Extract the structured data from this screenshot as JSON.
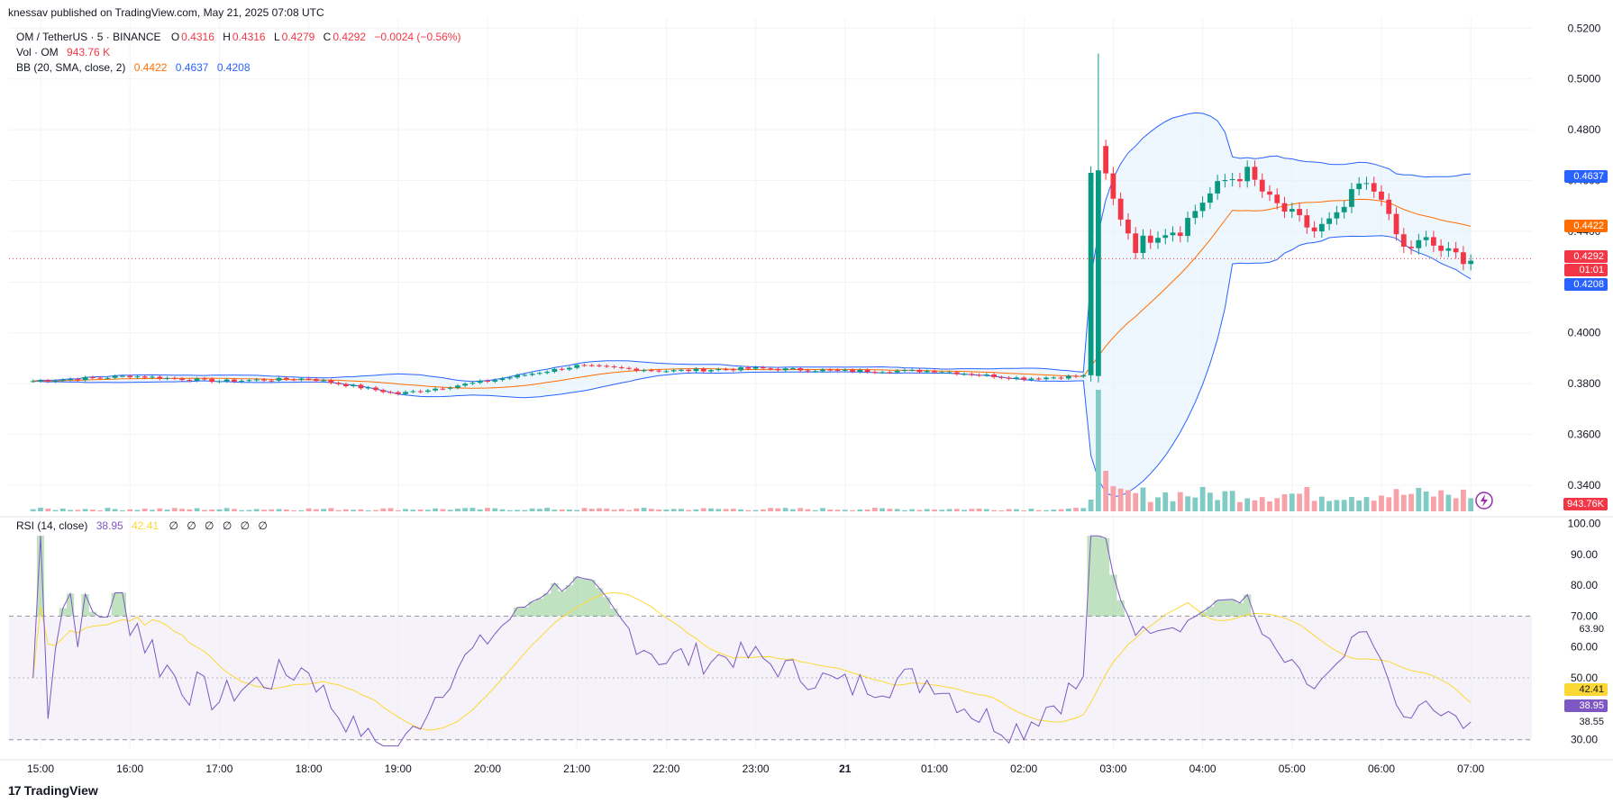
{
  "header": {
    "publisher": "knessav published on TradingView.com, May 21, 2025 07:08 UTC"
  },
  "symbol_line": {
    "symbol": "OM / TetherUS · 5 · BINANCE",
    "o_label": "O",
    "o": "0.4316",
    "h_label": "H",
    "h": "0.4316",
    "l_label": "L",
    "l": "0.4279",
    "c_label": "C",
    "c": "0.4292",
    "change": "−0.0024 (−0.56%)"
  },
  "vol_line": {
    "label": "Vol · OM",
    "value": "943.76 K"
  },
  "bb_line": {
    "label": "BB (20, SMA, close, 2)",
    "basis": "0.4422",
    "upper": "0.4637",
    "lower": "0.4208"
  },
  "rsi_line": {
    "label": "RSI (14, close)",
    "rsi": "38.95",
    "ma": "42.41",
    "placeholders": "∅ ∅ ∅ ∅ ∅ ∅"
  },
  "footer": {
    "brand": "TradingView",
    "logo_glyph": "17"
  },
  "price_labels": {
    "upper": "0.4637",
    "basis": "0.4422",
    "last": "0.4292",
    "countdown": "01:01",
    "lower": "0.4208",
    "volume": "943.76K"
  },
  "rsi_labels": {
    "upper_band": "63.90",
    "ma": "42.41",
    "rsi": "38.95",
    "lower_val": "38.55"
  },
  "colors": {
    "up": "#089981",
    "down": "#f23645",
    "bb_upper": "#2962ff",
    "bb_basis": "#ff6d00",
    "rsi": "#7e57c2",
    "rsi_ma": "#fdd835",
    "vol_up": "#80cbc4",
    "vol_down": "#f7a1a8",
    "band_fill": "#e3f2fd",
    "rsi_fill": "#ede7f6",
    "grid": "#f0f3fa"
  },
  "chart_data": [
    {
      "type": "candlestick",
      "title": "OM / TetherUS · 5 · BINANCE",
      "y_axis_ticks": [
        "0.5200",
        "0.5000",
        "0.4800",
        "0.4600",
        "0.4400",
        "0.4200",
        "0.4000",
        "0.3800",
        "0.3600",
        "0.3400"
      ],
      "ylim": [
        0.329,
        0.524
      ],
      "x_axis_ticks": [
        "15:00",
        "16:00",
        "17:00",
        "18:00",
        "19:00",
        "20:00",
        "21:00",
        "22:00",
        "23:00",
        "21",
        "01:00",
        "02:00",
        "03:00",
        "04:00",
        "05:00",
        "06:00",
        "07:00"
      ],
      "last_price": 0.4292,
      "bollinger": {
        "period": 20,
        "basis_last": 0.4422,
        "upper_last": 0.4637,
        "lower_last": 0.4208
      },
      "segments_close_approx": [
        {
          "time": "14:55",
          "close": 0.381
        },
        {
          "time": "16:00",
          "close": 0.383
        },
        {
          "time": "17:00",
          "close": 0.381
        },
        {
          "time": "18:00",
          "close": 0.382
        },
        {
          "time": "19:00",
          "close": 0.376
        },
        {
          "time": "20:00",
          "close": 0.381
        },
        {
          "time": "21:00",
          "close": 0.387
        },
        {
          "time": "22:00",
          "close": 0.385
        },
        {
          "time": "23:00",
          "close": 0.386
        },
        {
          "time": "00:00",
          "close": 0.385
        },
        {
          "time": "01:00",
          "close": 0.385
        },
        {
          "time": "02:00",
          "close": 0.382
        },
        {
          "time": "02:40",
          "close": 0.383
        },
        {
          "time": "02:45",
          "close": 0.464,
          "high": 0.51
        },
        {
          "time": "02:50",
          "close": 0.471
        },
        {
          "time": "03:00",
          "close": 0.452
        },
        {
          "time": "03:15",
          "close": 0.434
        },
        {
          "time": "03:30",
          "close": 0.44
        },
        {
          "time": "03:45",
          "close": 0.441
        },
        {
          "time": "04:00",
          "close": 0.452
        },
        {
          "time": "04:15",
          "close": 0.46
        },
        {
          "time": "04:30",
          "close": 0.463
        },
        {
          "time": "04:45",
          "close": 0.452
        },
        {
          "time": "05:00",
          "close": 0.446
        },
        {
          "time": "05:15",
          "close": 0.44
        },
        {
          "time": "05:30",
          "close": 0.445
        },
        {
          "time": "05:45",
          "close": 0.458
        },
        {
          "time": "06:00",
          "close": 0.455
        },
        {
          "time": "06:05",
          "close": 0.444
        },
        {
          "time": "06:15",
          "close": 0.433
        },
        {
          "time": "06:30",
          "close": 0.436
        },
        {
          "time": "06:45",
          "close": 0.431
        },
        {
          "time": "07:00",
          "close": 0.4292
        }
      ]
    },
    {
      "type": "line",
      "title": "RSI (14, close)",
      "y_axis_ticks": [
        "100.00",
        "90.00",
        "80.00",
        "70.00",
        "60.00",
        "50.00",
        "30.00"
      ],
      "ylim": [
        27,
        101
      ],
      "bands": {
        "upper": 70,
        "middle": 50,
        "lower": 30
      },
      "series": [
        {
          "name": "RSI",
          "last": 38.95
        },
        {
          "name": "RSI-based MA",
          "last": 42.41
        }
      ]
    }
  ]
}
